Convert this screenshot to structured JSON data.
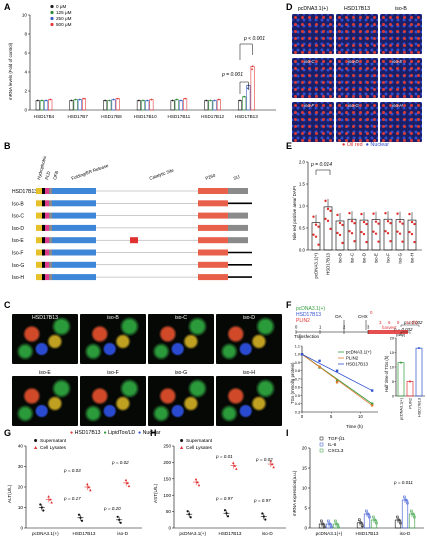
{
  "panels": {
    "A": "A",
    "B": "B",
    "C": "C",
    "D": "D",
    "E": "E",
    "F": "F",
    "G": "G",
    "H": "H",
    "I": "I"
  },
  "panelA": {
    "ylabel": "mRNA levels (Fold of control)",
    "legend": [
      "0 μM",
      "125 μM",
      "250 μM",
      "500 μM"
    ],
    "colors": [
      "#222222",
      "#2e8b3a",
      "#3e5fc8",
      "#e23b3b"
    ],
    "categories": [
      "HSD17B4",
      "HSD17B7",
      "HSD17B8",
      "HSD17B10",
      "HSD17B11",
      "HSD17B12",
      "HSD17B13"
    ],
    "p1": "p < 0.001",
    "p2": "p = 0.001",
    "yticks": [
      "0",
      "2",
      "4",
      "6",
      "8",
      "10"
    ]
  },
  "chart_data": [
    {
      "type": "bar",
      "ylabel": "mRNA levels (Fold of control)",
      "categories": [
        "HSD17B4",
        "HSD17B7",
        "HSD17B8",
        "HSD17B10",
        "HSD17B11",
        "HSD17B12",
        "HSD17B13"
      ],
      "ylim": [
        0,
        10
      ],
      "series": [
        {
          "name": "0 μM",
          "values": [
            1,
            1,
            1,
            1,
            1,
            1,
            1
          ]
        },
        {
          "name": "125 μM",
          "values": [
            1.0,
            1.1,
            1.0,
            1.0,
            1.1,
            1.0,
            1.4
          ]
        },
        {
          "name": "250 μM",
          "values": [
            1.0,
            1.1,
            1.1,
            1.0,
            1.0,
            1.0,
            2.6
          ]
        },
        {
          "name": "500 μM",
          "values": [
            1.1,
            1.2,
            1.2,
            1.1,
            1.2,
            1.1,
            4.6
          ]
        }
      ]
    },
    {
      "type": "bar",
      "ylabel": "Nile red positive area/ DAPI",
      "categories": [
        "pcDNA3.1(+)",
        "HSD17B13",
        "iso-B",
        "iso-C",
        "iso-D",
        "iso-E",
        "iso-F",
        "iso-G",
        "iso-H"
      ],
      "ylim": [
        0,
        2.0
      ],
      "values": [
        0.62,
        0.98,
        0.66,
        0.7,
        0.68,
        0.69,
        0.7,
        0.69,
        0.68
      ]
    },
    {
      "type": "line",
      "xlabel": "Time (h)",
      "ylabel": "TGs (mmol/g protein)",
      "x": [
        0,
        3,
        6,
        12
      ],
      "ylim": [
        0.3,
        1.1
      ],
      "series": [
        {
          "name": "pcDNA3.1(+)",
          "values": [
            1.0,
            0.84,
            0.68,
            0.4
          ]
        },
        {
          "name": "PLIN2",
          "values": [
            1.0,
            0.85,
            0.66,
            0.38
          ]
        },
        {
          "name": "HSD17B13",
          "values": [
            1.0,
            0.92,
            0.8,
            0.56
          ]
        }
      ]
    },
    {
      "type": "bar",
      "ylabel": "Half time of TGs (h)",
      "categories": [
        "pcDNA3.1(+)",
        "PLIN2",
        "HSD17B13"
      ],
      "ylim": [
        0,
        20
      ],
      "values": [
        11.5,
        5.0,
        16.5
      ]
    },
    {
      "type": "bar",
      "ylabel": "ALT(U/L)",
      "categories": [
        "pcDNA3.1(+)",
        "HSD17B13",
        "iso-D"
      ],
      "ylim": [
        0,
        40
      ],
      "series": [
        {
          "name": "Supernatant",
          "values": [
            10,
            5,
            4
          ]
        },
        {
          "name": "Cell Lysates",
          "values": [
            14,
            20,
            22
          ]
        }
      ]
    },
    {
      "type": "bar",
      "ylabel": "AST(U/L)",
      "categories": [
        "pcDNA3.1(+)",
        "HSD17B13",
        "iso-D"
      ],
      "ylim": [
        0,
        250
      ],
      "series": [
        {
          "name": "Supernatant",
          "values": [
            42,
            45,
            35
          ]
        },
        {
          "name": "Cell Lysates",
          "values": [
            140,
            190,
            195
          ]
        }
      ]
    },
    {
      "type": "bar",
      "ylabel": "mRNA expression(a.u.)",
      "categories": [
        "pcDNA3.1(+)",
        "HSD17B13",
        "iso-D"
      ],
      "ylim": [
        0,
        20
      ],
      "series": [
        {
          "name": "TGF-β1",
          "values": [
            1.0,
            1.3,
            2.0
          ]
        },
        {
          "name": "IL-6",
          "values": [
            1.0,
            3.5,
            7.0
          ]
        },
        {
          "name": "CXCL3",
          "values": [
            1.0,
            2.0,
            3.5
          ]
        }
      ]
    }
  ],
  "panelB": {
    "domains": [
      "Hydrophobic",
      "PLD",
      "OFB",
      "Folding/ER Release",
      "Catalytic Site",
      "P260",
      "SIJ"
    ],
    "rows": [
      "HSD17B13",
      "Iso-B",
      "Iso-C",
      "Iso-D",
      "Iso-E",
      "Iso-F",
      "Iso-G",
      "Iso-H"
    ]
  },
  "panelD": {
    "headers": [
      "pcDNA3.1(+)",
      "HSD17B13",
      "iso-B"
    ],
    "labels": [
      "iso-C",
      "iso-D",
      "iso-E",
      "iso-F",
      "iso-G",
      "iso-H"
    ],
    "legend_oil": "Oil red",
    "legend_nuclear": "Nuclear"
  },
  "panelE": {
    "ylabel": "Nile red positive area/ DAPI",
    "p": "p = 0.014",
    "categories": [
      "pcDNA3.1(+)",
      "HSD17B13",
      "iso-B",
      "iso-C",
      "iso-D",
      "iso-E",
      "iso-F",
      "iso-G",
      "iso-H"
    ]
  },
  "panelC": {
    "top": [
      "HSD17B13",
      "iso-B",
      "iso-C",
      "iso-D"
    ],
    "bottom": [
      "iso-E",
      "iso-F",
      "iso-G",
      "iso-H"
    ],
    "legend": [
      "HSD17B13",
      "LipidTox/LD",
      "Nuclear"
    ]
  },
  "panelF": {
    "timeline_labels": [
      "pcDNA3.1(+)",
      "HSD17B13",
      "PLIN2"
    ],
    "oa": "OA",
    "chx": "CHX",
    "harvest": "harvest",
    "transfection": "Transfection",
    "days": "(day)",
    "hours": [
      "0",
      "3",
      "6",
      "9",
      "12 (h)"
    ],
    "day_ticks": [
      "0",
      "1",
      "2",
      "3"
    ],
    "legend": [
      "pcDNA3.1(+)",
      "PLIN2",
      "HSD17B13"
    ],
    "xlabel": "Time (h)",
    "ylabel": "TGs (mmol/g protein)",
    "yticks": [
      "0.3",
      "0.4",
      "0.5",
      "0.6",
      "0.7",
      "0.8",
      "0.9",
      "1.0",
      "1.1"
    ],
    "xticks": [
      "0",
      "5",
      "10"
    ],
    "half_ylabel": "Half time of TGs (h)",
    "half_p1": "p = 0.032",
    "half_p2": "p = 0.002",
    "half_cats": [
      "pcDNA3.1(+)",
      "PLIN2",
      "HSD17B13"
    ],
    "half_yticks": [
      "0",
      "5",
      "10",
      "15",
      "20"
    ]
  },
  "panelG": {
    "ylabel": "ALT(U/L)",
    "legend": [
      "Supernatant",
      "Cell Lysates"
    ],
    "p_top": [
      "p = 0.03",
      "p = 0.02"
    ],
    "p_bot": [
      "p = 0.17",
      "p = 0.20"
    ],
    "cats": [
      "pcDNA3.1(+)",
      "HSD17B13",
      "iso-D"
    ],
    "yticks": [
      "0",
      "10",
      "20",
      "30",
      "40"
    ]
  },
  "panelH": {
    "ylabel": "AST(U/L)",
    "legend": [
      "Supernatant",
      "Cell Lysates"
    ],
    "p_top": [
      "p = 0.01",
      "p = 0.02"
    ],
    "p_bot": [
      "p = 0.97",
      "p = 0.97"
    ],
    "cats": [
      "pcDNA3.1(+)",
      "HSD17B13",
      "iso-D"
    ],
    "yticks": [
      "0",
      "50",
      "100",
      "150",
      "200",
      "250"
    ]
  },
  "panelI": {
    "ylabel": "mRNA expression(a.u.)",
    "legend": [
      "TGF-β1",
      "IL-6",
      "CXCL3"
    ],
    "p": "p = 0.011",
    "cats": [
      "pcDNA3.1(+)",
      "HSD17B13",
      "iso-D"
    ],
    "yticks": [
      "0",
      "5",
      "10",
      "15",
      "20"
    ]
  }
}
